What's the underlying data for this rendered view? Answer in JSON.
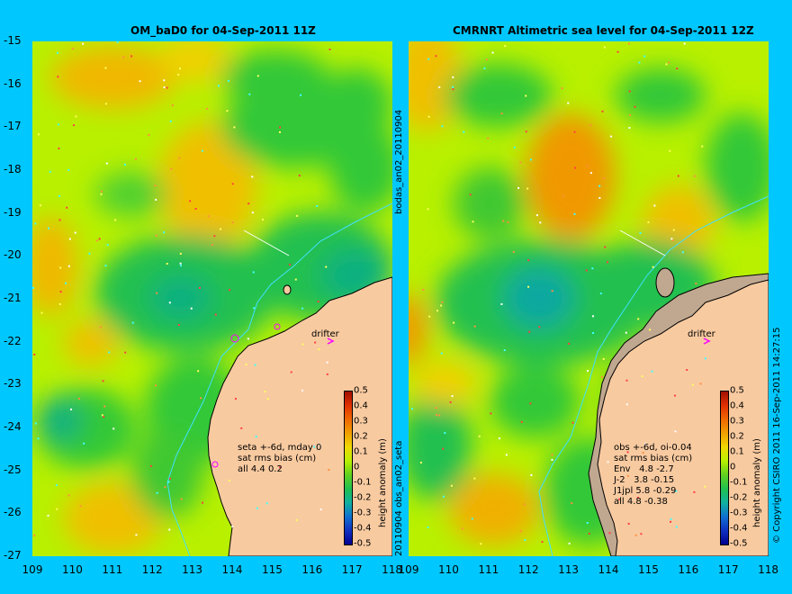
{
  "left": {
    "title": "OM_baD0 for 04-Sep-2011 11Z",
    "side_label_bottom": "20110904 obs_an02_seta",
    "stats": "seta +-6d, mday 0\nsat rms bias (cm)\nall 4.4 0.2"
  },
  "right": {
    "title": "CMRNRT Altimetric sea level  for 04-Sep-2011 12Z",
    "side_label_top": "bodas_an02_20110904",
    "stats": "obs +-6d, oi-0.04\nsat rms bias (cm)\nEnv   4.8 -2.7\nJ-2   3.8 -0.15\nJ1jpl 5.8 -0.29\nall 4.8 -0.38"
  },
  "drifter_label": "drifter",
  "y_ticks": [
    "-15",
    "-16",
    "-17",
    "-18",
    "-19",
    "-20",
    "-21",
    "-22",
    "-23",
    "-24",
    "-25",
    "-26",
    "-27"
  ],
  "x_ticks": [
    "109",
    "110",
    "111",
    "112",
    "113",
    "114",
    "115",
    "116",
    "117",
    "118"
  ],
  "colorbar": {
    "ticks": [
      "0.5",
      "0.4",
      "0.3",
      "0.2",
      "0.1",
      "0",
      "-0.1",
      "-0.2",
      "-0.3",
      "-0.4",
      "-0.5"
    ],
    "label": "height anomaly (m)"
  },
  "copyright": "© Copyright CSIRO 2011  16-Sep-2011 14:27:15",
  "colors": {
    "background": "#00c8ff",
    "land": "#f8caa0",
    "drifter": "#ff00ff",
    "shelf_line": "#40e0ff"
  }
}
